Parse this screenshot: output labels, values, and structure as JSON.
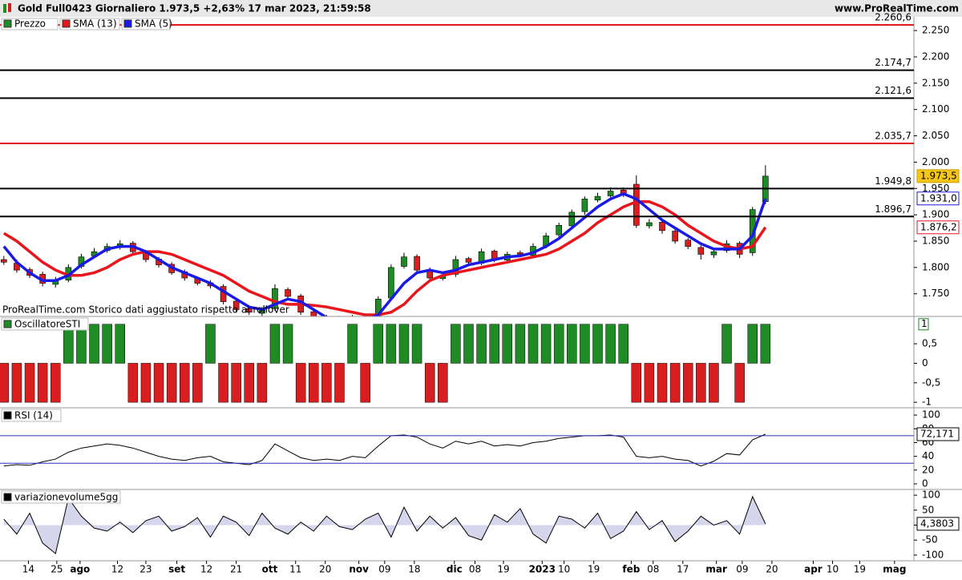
{
  "header": {
    "title": "Gold Full0423 Giornaliero 1.973,5 +2,63% 17 mar 2023, 21:59:58",
    "source": "www.ProRealTime.com"
  },
  "chart_data": [
    {
      "type": "candlestick",
      "annotation": "ProRealTime.com Storico dati aggiustato rispetto ai rollover",
      "xlim": [
        -0.3,
        70.5
      ],
      "ylim": [
        1707,
        2276
      ],
      "yticks": [
        {
          "value": 2250,
          "label": "2.250"
        },
        {
          "value": 2200,
          "label": "2.200"
        },
        {
          "value": 2150,
          "label": "2.150"
        },
        {
          "value": 2100,
          "label": "2.100"
        },
        {
          "value": 2050,
          "label": "2.050"
        },
        {
          "value": 2000,
          "label": "2.000"
        },
        {
          "value": 1950,
          "label": "1.950"
        },
        {
          "value": 1900,
          "label": "1.900"
        },
        {
          "value": 1850,
          "label": "1.850"
        },
        {
          "value": 1800,
          "label": "1.800"
        },
        {
          "value": 1750,
          "label": "1.750"
        }
      ],
      "levels": [
        {
          "value": 2260.6,
          "label": "2.260,6",
          "color": "#e01010"
        },
        {
          "value": 2174.7,
          "label": "2.174,7",
          "color": "#000000"
        },
        {
          "value": 2121.6,
          "label": "2.121,6",
          "color": "#000000"
        },
        {
          "value": 2035.7,
          "label": "2.035,7",
          "color": "#e01010"
        },
        {
          "value": 1949.8,
          "label": "1.949,8",
          "color": "#000000"
        },
        {
          "value": 1896.7,
          "label": "1.896,7",
          "color": "#000000"
        }
      ],
      "series": [
        {
          "name": "Prezzo",
          "color_up": "#1f8b24",
          "color_down": "#d81e1e",
          "last_label": "1.973,5",
          "open": [
            1815,
            1808,
            1796,
            1787,
            1768,
            1776,
            1802,
            1822,
            1832,
            1838,
            1846,
            1828,
            1816,
            1806,
            1792,
            1779,
            1771,
            1764,
            1736,
            1722,
            1713,
            1722,
            1758,
            1746,
            1716,
            1706,
            1699,
            1706,
            1699,
            1706,
            1742,
            1802,
            1821,
            1796,
            1779,
            1787,
            1817,
            1808,
            1831,
            1814,
            1828,
            1823,
            1841,
            1862,
            1879,
            1906,
            1928,
            1936,
            1947,
            1958,
            1879,
            1886,
            1869,
            1852,
            1838,
            1824,
            1832,
            1846,
            1828,
            1925
          ],
          "high": [
            1822,
            1815,
            1800,
            1792,
            1782,
            1806,
            1826,
            1837,
            1846,
            1852,
            1850,
            1833,
            1820,
            1810,
            1796,
            1783,
            1776,
            1768,
            1740,
            1726,
            1725,
            1768,
            1762,
            1750,
            1720,
            1710,
            1708,
            1710,
            1710,
            1745,
            1806,
            1828,
            1825,
            1800,
            1790,
            1822,
            1820,
            1836,
            1834,
            1830,
            1832,
            1846,
            1866,
            1885,
            1910,
            1935,
            1942,
            1952,
            1952,
            1975,
            1892,
            1890,
            1874,
            1856,
            1842,
            1835,
            1852,
            1850,
            1915,
            1994
          ],
          "low": [
            1805,
            1790,
            1780,
            1764,
            1762,
            1772,
            1798,
            1818,
            1828,
            1834,
            1826,
            1810,
            1800,
            1786,
            1775,
            1766,
            1760,
            1730,
            1715,
            1710,
            1708,
            1718,
            1740,
            1710,
            1700,
            1695,
            1694,
            1696,
            1696,
            1700,
            1738,
            1798,
            1790,
            1774,
            1775,
            1782,
            1805,
            1804,
            1810,
            1810,
            1820,
            1818,
            1836,
            1856,
            1874,
            1900,
            1924,
            1930,
            1934,
            1875,
            1874,
            1864,
            1845,
            1835,
            1815,
            1818,
            1828,
            1818,
            1822,
            1920
          ],
          "close": [
            1810,
            1795,
            1785,
            1770,
            1775,
            1800,
            1820,
            1830,
            1840,
            1845,
            1830,
            1815,
            1805,
            1790,
            1780,
            1770,
            1765,
            1735,
            1720,
            1715,
            1720,
            1760,
            1745,
            1715,
            1705,
            1700,
            1705,
            1700,
            1705,
            1740,
            1800,
            1820,
            1795,
            1780,
            1785,
            1815,
            1810,
            1830,
            1815,
            1825,
            1825,
            1840,
            1860,
            1880,
            1905,
            1930,
            1935,
            1945,
            1940,
            1880,
            1885,
            1870,
            1850,
            1840,
            1825,
            1830,
            1845,
            1825,
            1910,
            1973.5
          ]
        },
        {
          "name": "SMA (13)",
          "color": "#e8161c",
          "last_label": "1.876,2",
          "values": [
            1865,
            1850,
            1830,
            1810,
            1795,
            1785,
            1785,
            1790,
            1800,
            1815,
            1825,
            1830,
            1830,
            1825,
            1815,
            1805,
            1795,
            1785,
            1770,
            1755,
            1745,
            1735,
            1730,
            1730,
            1728,
            1725,
            1720,
            1715,
            1710,
            1710,
            1715,
            1730,
            1755,
            1775,
            1785,
            1790,
            1795,
            1800,
            1805,
            1810,
            1815,
            1820,
            1825,
            1835,
            1850,
            1865,
            1885,
            1900,
            1915,
            1925,
            1925,
            1915,
            1900,
            1880,
            1865,
            1850,
            1840,
            1835,
            1840,
            1876.2
          ]
        },
        {
          "name": "SMA (5)",
          "color": "#1a1ae6",
          "last_label": "1.931,0",
          "values": [
            1840,
            1810,
            1790,
            1775,
            1775,
            1785,
            1805,
            1820,
            1835,
            1840,
            1840,
            1830,
            1815,
            1800,
            1790,
            1780,
            1770,
            1755,
            1740,
            1725,
            1720,
            1730,
            1740,
            1735,
            1720,
            1705,
            1700,
            1700,
            1700,
            1710,
            1740,
            1770,
            1790,
            1795,
            1790,
            1795,
            1805,
            1810,
            1815,
            1820,
            1822,
            1828,
            1840,
            1855,
            1875,
            1895,
            1915,
            1930,
            1940,
            1930,
            1910,
            1890,
            1875,
            1860,
            1845,
            1835,
            1835,
            1835,
            1860,
            1931
          ]
        }
      ]
    },
    {
      "type": "bar",
      "title": "OscillatoreSTI",
      "xlim": [
        -0.3,
        70.5
      ],
      "ylim": [
        -1.12,
        1.2
      ],
      "color_up": "#1f8b24",
      "color_down": "#d81e1e",
      "last_label": "1",
      "yticks": [
        {
          "value": 0.5,
          "label": "0,5"
        },
        0,
        {
          "value": -0.5,
          "label": "-0,5"
        },
        -1
      ],
      "values": [
        -1,
        -1,
        -1,
        -1,
        -1,
        1,
        1,
        1,
        1,
        1,
        -1,
        -1,
        -1,
        -1,
        -1,
        -1,
        1,
        -1,
        -1,
        -1,
        -1,
        1,
        1,
        -1,
        -1,
        -1,
        -1,
        1,
        -1,
        1,
        1,
        1,
        1,
        -1,
        -1,
        1,
        1,
        1,
        1,
        1,
        1,
        1,
        1,
        1,
        1,
        1,
        1,
        1,
        1,
        -1,
        -1,
        -1,
        -1,
        -1,
        -1,
        -1,
        1,
        -1,
        1,
        1
      ]
    },
    {
      "type": "line",
      "title": "RSI (14)",
      "xlim": [
        -0.3,
        70.5
      ],
      "ylim": [
        -7,
        110.6
      ],
      "color": "#000000",
      "levels": [
        70,
        30
      ],
      "level_color": "#3030c0",
      "last_label": "72,171",
      "yticks": [
        100,
        80,
        60,
        40,
        20,
        0
      ],
      "values": [
        26,
        28,
        27,
        32,
        36,
        46,
        52,
        55,
        58,
        56,
        52,
        46,
        40,
        36,
        34,
        38,
        40,
        32,
        30,
        28,
        34,
        58,
        48,
        38,
        34,
        36,
        34,
        40,
        38,
        55,
        70,
        71,
        68,
        58,
        52,
        62,
        58,
        62,
        55,
        57,
        55,
        60,
        62,
        66,
        68,
        70,
        70,
        71,
        68,
        40,
        38,
        40,
        36,
        34,
        26,
        33,
        44,
        42,
        64,
        72.171
      ]
    },
    {
      "type": "area",
      "title": "variazionevolume5gg",
      "xlim": [
        -0.3,
        70.5
      ],
      "ylim": [
        -119,
        119
      ],
      "color": "#000000",
      "fill": "#d5d6ec",
      "last_label": "4,3803",
      "yticks": [
        100,
        50,
        0,
        -50,
        -100
      ],
      "values": [
        20,
        -30,
        40,
        -60,
        -95,
        90,
        30,
        -10,
        -20,
        10,
        -25,
        15,
        30,
        -20,
        -5,
        25,
        -40,
        30,
        10,
        -35,
        40,
        -10,
        -30,
        10,
        -20,
        30,
        -5,
        -15,
        20,
        40,
        -40,
        60,
        -20,
        30,
        -10,
        25,
        -35,
        -50,
        35,
        10,
        55,
        -30,
        -60,
        30,
        20,
        -10,
        40,
        -45,
        -20,
        45,
        -15,
        15,
        -55,
        -20,
        30,
        0,
        15,
        -30,
        95,
        4.3803
      ],
      "xticks": [
        {
          "value": 1.9,
          "label": "14"
        },
        {
          "value": 4.1,
          "label": "25"
        },
        {
          "value": 5.9,
          "label": "ago"
        },
        {
          "value": 8.8,
          "label": "12"
        },
        {
          "value": 11.0,
          "label": "23"
        },
        {
          "value": 13.4,
          "label": "set"
        },
        {
          "value": 15.7,
          "label": "12"
        },
        {
          "value": 18.0,
          "label": "21"
        },
        {
          "value": 20.6,
          "label": "ott"
        },
        {
          "value": 22.6,
          "label": "11"
        },
        {
          "value": 24.9,
          "label": "20"
        },
        {
          "value": 27.5,
          "label": "nov"
        },
        {
          "value": 29.5,
          "label": "09"
        },
        {
          "value": 31.8,
          "label": "18"
        },
        {
          "value": 34.9,
          "label": "dic"
        },
        {
          "value": 36.5,
          "label": "08"
        },
        {
          "value": 38.7,
          "label": "19"
        },
        {
          "value": 41.7,
          "label": "2023"
        },
        {
          "value": 43.4,
          "label": "10"
        },
        {
          "value": 45.7,
          "label": "19"
        },
        {
          "value": 48.6,
          "label": "feb"
        },
        {
          "value": 50.3,
          "label": "08"
        },
        {
          "value": 52.6,
          "label": "17"
        },
        {
          "value": 55.2,
          "label": "mar"
        },
        {
          "value": 57.2,
          "label": "09"
        },
        {
          "value": 59.5,
          "label": "20"
        },
        {
          "value": 62.7,
          "label": "apr"
        },
        {
          "value": 64.2,
          "label": "10"
        },
        {
          "value": 66.3,
          "label": "19"
        },
        {
          "value": 69.0,
          "label": "mag"
        }
      ]
    }
  ]
}
